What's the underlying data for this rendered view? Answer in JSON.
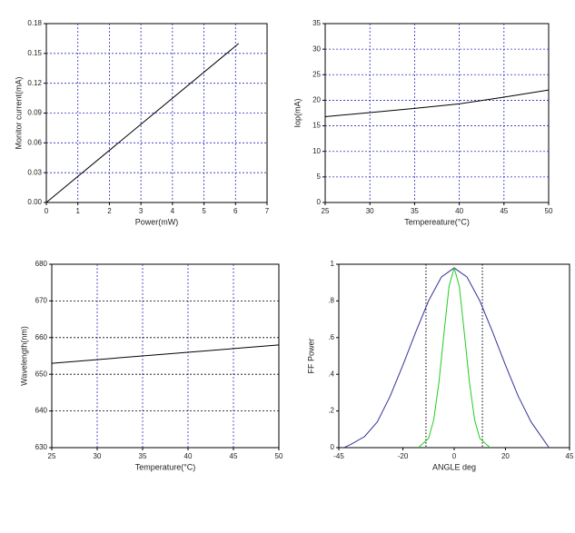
{
  "chart_data": [
    {
      "type": "line",
      "xlabel": "Power(mW)",
      "ylabel": "Monitor current(mA)",
      "xlim": [
        0,
        7
      ],
      "xticks": [
        0,
        1,
        2,
        3,
        4,
        5,
        6,
        7
      ],
      "ylim": [
        0,
        0.18
      ],
      "yticks": [
        {
          "value": 0,
          "label": "0.00"
        },
        0.03,
        0.06,
        0.09,
        0.12,
        0.15,
        0.18
      ],
      "grid": true,
      "grid_color": {
        "x": "#2b2bb8",
        "y": "#2b2bb8"
      },
      "series": [
        {
          "color": "#000000",
          "x": [
            0,
            6.1
          ],
          "values": [
            0,
            0.16
          ]
        }
      ]
    },
    {
      "type": "line",
      "xlabel": "Tempereature(°C)",
      "ylabel": "Iop(mA)",
      "xlim": [
        25,
        50
      ],
      "xticks": [
        25,
        30,
        35,
        40,
        45,
        50
      ],
      "ylim": [
        0,
        35
      ],
      "yticks": [
        0,
        5,
        10,
        15,
        20,
        25,
        30,
        35
      ],
      "grid": true,
      "grid_color": {
        "x": "#2b2bb8",
        "y": "#2b2bb8"
      },
      "series": [
        {
          "color": "#000000",
          "x": [
            25,
            30,
            35,
            40,
            45,
            50
          ],
          "values": [
            16.8,
            17.6,
            18.4,
            19.3,
            20.6,
            22
          ]
        }
      ]
    },
    {
      "type": "line",
      "xlabel": "Temperature(°C)",
      "ylabel": "Wavelength(nm)",
      "xlim": [
        25,
        50
      ],
      "xticks": [
        25,
        30,
        35,
        40,
        45,
        50
      ],
      "ylim": [
        630,
        680
      ],
      "yticks": [
        630,
        640,
        650,
        660,
        670,
        680
      ],
      "grid": true,
      "grid_color": {
        "x": "#2b2bb8",
        "y": "#000000"
      },
      "series": [
        {
          "color": "#000000",
          "x": [
            25,
            50
          ],
          "values": [
            653,
            658
          ]
        }
      ]
    },
    {
      "type": "line",
      "xlabel": "ANGLE deg",
      "ylabel": "FF Power",
      "xlim": [
        -45,
        45
      ],
      "xticks": [
        -45,
        -20,
        0,
        20,
        45
      ],
      "ylim": [
        0,
        1
      ],
      "yticks": [
        0,
        {
          "value": 0.2,
          "label": ".2"
        },
        {
          "value": 0.4,
          "label": ".4"
        },
        {
          "value": 0.6,
          "label": ".6"
        },
        {
          "value": 0.8,
          "label": ".8"
        },
        1
      ],
      "grid": false,
      "vlines": [
        -11,
        11
      ],
      "series": [
        {
          "color": "#333399",
          "x": [
            -43,
            -40,
            -35,
            -30,
            -25,
            -20,
            -15,
            -10,
            -5,
            0,
            5,
            10,
            15,
            20,
            25,
            30,
            35,
            37
          ],
          "values": [
            0,
            0.02,
            0.06,
            0.14,
            0.28,
            0.45,
            0.63,
            0.8,
            0.93,
            0.98,
            0.93,
            0.8,
            0.63,
            0.45,
            0.28,
            0.14,
            0.04,
            0
          ]
        },
        {
          "color": "#22cc22",
          "x": [
            -14,
            -10,
            -8,
            -6,
            -4,
            -2,
            0,
            2,
            4,
            6,
            8,
            10,
            14
          ],
          "values": [
            0,
            0.05,
            0.15,
            0.35,
            0.62,
            0.88,
            0.98,
            0.88,
            0.62,
            0.35,
            0.15,
            0.05,
            0
          ]
        }
      ]
    }
  ]
}
